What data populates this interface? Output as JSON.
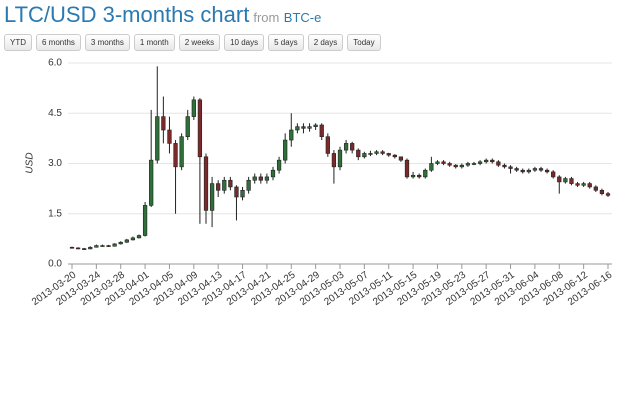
{
  "header": {
    "title": "LTC/USD 3-months chart",
    "from": "from",
    "source": "BTC-e"
  },
  "buttons": [
    "YTD",
    "6 months",
    "3 months",
    "1 month",
    "2 weeks",
    "10 days",
    "5 days",
    "2 days",
    "Today"
  ],
  "chart_data": {
    "type": "candlestick",
    "y_label": "USD",
    "up_color": "#2f6f3a",
    "down_color": "#7a2a2a",
    "grid": true,
    "ylim": [
      0,
      6
    ],
    "yticks": [
      {
        "value": 0,
        "label": "0.0"
      },
      1.5,
      {
        "value": 3,
        "label": "3.0"
      },
      4.5,
      {
        "value": 6,
        "label": "6.0"
      }
    ],
    "xticks": [
      "2013-03-20",
      "2013-03-24",
      "2013-03-28",
      "2013-04-01",
      "2013-04-05",
      "2013-04-09",
      "2013-04-13",
      "2013-04-17",
      "2013-04-21",
      "2013-04-25",
      "2013-04-29",
      "2013-05-03",
      "2013-05-07",
      "2013-05-11",
      "2013-05-15",
      "2013-05-19",
      "2013-05-23",
      "2013-05-27",
      "2013-05-31",
      "2013-06-04",
      "2013-06-08",
      "2013-06-12",
      "2013-06-16"
    ],
    "x": [
      "2013-03-20",
      "2013-03-21",
      "2013-03-22",
      "2013-03-23",
      "2013-03-24",
      "2013-03-25",
      "2013-03-26",
      "2013-03-27",
      "2013-03-28",
      "2013-03-29",
      "2013-03-30",
      "2013-03-31",
      "2013-04-01",
      "2013-04-02",
      "2013-04-03",
      "2013-04-04",
      "2013-04-05",
      "2013-04-06",
      "2013-04-07",
      "2013-04-08",
      "2013-04-09",
      "2013-04-10",
      "2013-04-11",
      "2013-04-12",
      "2013-04-13",
      "2013-04-14",
      "2013-04-15",
      "2013-04-16",
      "2013-04-17",
      "2013-04-18",
      "2013-04-19",
      "2013-04-20",
      "2013-04-21",
      "2013-04-22",
      "2013-04-23",
      "2013-04-24",
      "2013-04-25",
      "2013-04-26",
      "2013-04-27",
      "2013-04-28",
      "2013-04-29",
      "2013-04-30",
      "2013-05-01",
      "2013-05-02",
      "2013-05-03",
      "2013-05-04",
      "2013-05-05",
      "2013-05-06",
      "2013-05-07",
      "2013-05-08",
      "2013-05-09",
      "2013-05-10",
      "2013-05-11",
      "2013-05-12",
      "2013-05-13",
      "2013-05-14",
      "2013-05-15",
      "2013-05-16",
      "2013-05-17",
      "2013-05-18",
      "2013-05-19",
      "2013-05-20",
      "2013-05-21",
      "2013-05-22",
      "2013-05-23",
      "2013-05-24",
      "2013-05-25",
      "2013-05-26",
      "2013-05-27",
      "2013-05-28",
      "2013-05-29",
      "2013-05-30",
      "2013-05-31",
      "2013-06-01",
      "2013-06-02",
      "2013-06-03",
      "2013-06-04",
      "2013-06-05",
      "2013-06-06",
      "2013-06-07",
      "2013-06-08",
      "2013-06-09",
      "2013-06-10",
      "2013-06-11",
      "2013-06-12",
      "2013-06-13",
      "2013-06-14",
      "2013-06-15",
      "2013-06-16"
    ],
    "open": [
      0.5,
      0.48,
      0.46,
      0.45,
      0.5,
      0.55,
      0.55,
      0.53,
      0.6,
      0.65,
      0.72,
      0.78,
      0.85,
      1.75,
      3.1,
      4.4,
      4.0,
      3.6,
      2.9,
      3.8,
      4.4,
      4.9,
      3.2,
      1.6,
      2.4,
      2.2,
      2.5,
      2.3,
      2.0,
      2.2,
      2.5,
      2.6,
      2.5,
      2.6,
      2.8,
      3.1,
      3.7,
      4.0,
      4.1,
      4.05,
      4.1,
      4.15,
      3.8,
      3.3,
      2.9,
      3.4,
      3.6,
      3.4,
      3.2,
      3.3,
      3.3,
      3.35,
      3.3,
      3.25,
      3.2,
      3.1,
      2.6,
      2.65,
      2.6,
      2.8,
      3.0,
      3.05,
      3.0,
      2.95,
      2.9,
      2.95,
      3.0,
      3.0,
      3.05,
      3.1,
      3.05,
      2.95,
      2.9,
      2.85,
      2.8,
      2.75,
      2.8,
      2.85,
      2.8,
      2.75,
      2.6,
      2.45,
      2.55,
      2.4,
      2.35,
      2.4,
      2.3,
      2.2,
      2.1
    ],
    "high": [
      0.52,
      0.5,
      0.48,
      0.53,
      0.58,
      0.58,
      0.57,
      0.62,
      0.68,
      0.75,
      0.82,
      0.88,
      1.85,
      4.6,
      5.9,
      5.0,
      4.4,
      3.7,
      3.9,
      4.6,
      5.0,
      4.95,
      3.3,
      2.6,
      2.5,
      2.6,
      2.6,
      2.35,
      2.3,
      2.6,
      2.7,
      2.7,
      2.7,
      2.9,
      3.2,
      3.9,
      4.5,
      4.2,
      4.2,
      4.2,
      4.2,
      4.2,
      3.9,
      3.4,
      3.5,
      3.7,
      3.65,
      3.45,
      3.35,
      3.38,
      3.4,
      3.4,
      3.32,
      3.28,
      3.2,
      3.15,
      2.75,
      2.7,
      2.85,
      3.2,
      3.1,
      3.1,
      3.05,
      2.98,
      3.0,
      3.05,
      3.05,
      3.1,
      3.15,
      3.15,
      3.1,
      3.0,
      2.95,
      2.9,
      2.85,
      2.85,
      2.9,
      2.9,
      2.85,
      2.8,
      2.65,
      2.6,
      2.6,
      2.45,
      2.45,
      2.45,
      2.35,
      2.25,
      2.15
    ],
    "low": [
      0.46,
      0.44,
      0.42,
      0.44,
      0.49,
      0.52,
      0.51,
      0.52,
      0.58,
      0.63,
      0.7,
      0.76,
      0.82,
      1.7,
      3.0,
      3.6,
      3.3,
      1.5,
      2.8,
      3.7,
      4.3,
      1.2,
      1.2,
      1.1,
      2.0,
      2.1,
      2.2,
      1.3,
      1.9,
      2.1,
      2.4,
      2.4,
      2.4,
      2.5,
      2.7,
      3.0,
      3.5,
      3.9,
      3.9,
      3.95,
      4.0,
      3.7,
      3.2,
      2.4,
      2.8,
      3.3,
      3.3,
      3.1,
      3.15,
      3.22,
      3.25,
      3.25,
      3.2,
      3.15,
      3.05,
      2.55,
      2.55,
      2.55,
      2.55,
      2.75,
      2.95,
      2.95,
      2.9,
      2.85,
      2.85,
      2.9,
      2.95,
      2.95,
      3.0,
      3.0,
      2.9,
      2.85,
      2.7,
      2.75,
      2.7,
      2.7,
      2.75,
      2.75,
      2.7,
      2.55,
      2.1,
      2.4,
      2.35,
      2.3,
      2.3,
      2.25,
      2.15,
      2.05,
      2.0
    ],
    "close": [
      0.48,
      0.46,
      0.45,
      0.5,
      0.55,
      0.55,
      0.53,
      0.6,
      0.65,
      0.72,
      0.78,
      0.85,
      1.75,
      3.1,
      4.4,
      4.0,
      3.6,
      2.9,
      3.8,
      4.4,
      4.9,
      3.2,
      1.6,
      2.4,
      2.2,
      2.5,
      2.3,
      2.0,
      2.2,
      2.5,
      2.6,
      2.5,
      2.6,
      2.8,
      3.1,
      3.7,
      4.0,
      4.1,
      4.05,
      4.1,
      4.15,
      3.8,
      3.3,
      2.9,
      3.4,
      3.6,
      3.4,
      3.2,
      3.3,
      3.3,
      3.35,
      3.3,
      3.25,
      3.2,
      3.1,
      2.6,
      2.65,
      2.6,
      2.8,
      3.0,
      3.05,
      3.0,
      2.95,
      2.9,
      2.95,
      3.0,
      3.0,
      3.05,
      3.1,
      3.05,
      2.95,
      2.9,
      2.85,
      2.8,
      2.75,
      2.8,
      2.85,
      2.8,
      2.75,
      2.6,
      2.45,
      2.55,
      2.4,
      2.35,
      2.4,
      2.3,
      2.2,
      2.1,
      2.05
    ]
  }
}
